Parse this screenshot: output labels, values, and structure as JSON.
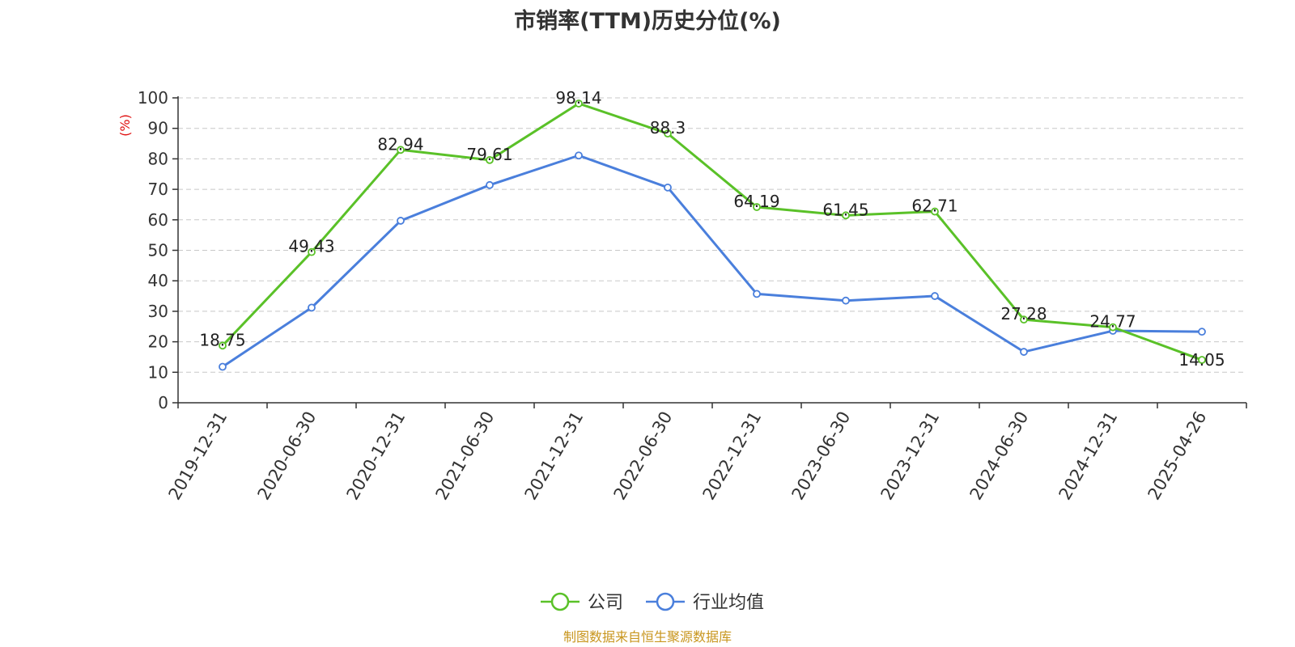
{
  "chart_data": {
    "type": "line",
    "title": "市销率(TTM)历史分位(%)",
    "ylabel": "(%)",
    "ylim": [
      0,
      100
    ],
    "yticks": [
      0,
      10,
      20,
      30,
      40,
      50,
      60,
      70,
      80,
      90,
      100
    ],
    "grid": "horizontal dashed",
    "legend_position": "bottom-center",
    "categories": [
      "2019-12-31",
      "2020-06-30",
      "2020-12-31",
      "2021-06-30",
      "2021-12-31",
      "2022-06-30",
      "2022-12-31",
      "2023-06-30",
      "2023-12-31",
      "2024-06-30",
      "2024-12-31",
      "2025-04-26"
    ],
    "series": [
      {
        "name": "公司",
        "color": "#5ac128",
        "values": [
          18.75,
          49.43,
          82.94,
          79.61,
          98.14,
          88.3,
          64.19,
          61.45,
          62.71,
          27.28,
          24.77,
          14.05
        ],
        "labels": [
          "18.75",
          "49.43",
          "82.94",
          "79.61",
          "98.14",
          "88.3",
          "64.19",
          "61.45",
          "62.71",
          "27.28",
          "24.77",
          "14.05"
        ]
      },
      {
        "name": "行业均值",
        "color": "#4a7fdc",
        "values": [
          11.8,
          31.2,
          59.7,
          71.4,
          81.1,
          70.6,
          35.7,
          33.5,
          35.0,
          16.7,
          23.6,
          23.3
        ]
      }
    ]
  },
  "source": "制图数据来自恒生聚源数据库"
}
